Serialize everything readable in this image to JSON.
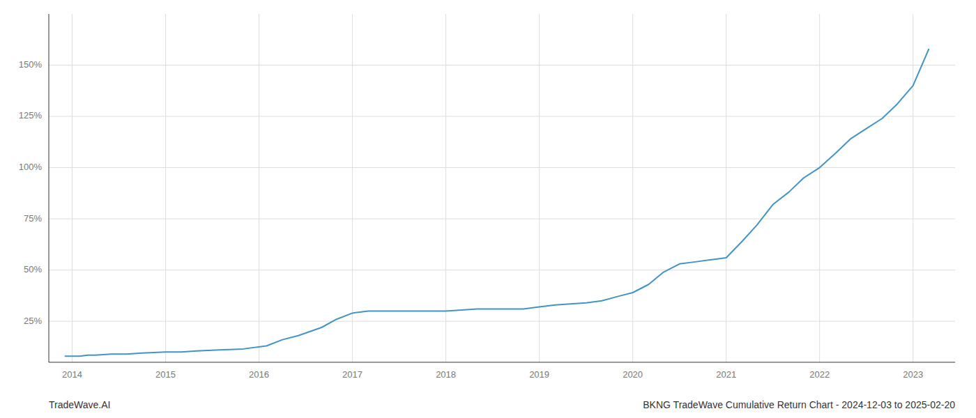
{
  "chart_data": {
    "type": "line",
    "title": "BKNG TradeWave Cumulative Return Chart - 2024-12-03 to 2025-02-20",
    "annotations": [
      "TradeWave.AI"
    ],
    "x": [
      2013.92,
      2014.0,
      2014.08,
      2014.17,
      2014.25,
      2014.42,
      2014.58,
      2014.75,
      2015.0,
      2015.17,
      2015.33,
      2015.58,
      2015.83,
      2016.08,
      2016.25,
      2016.42,
      2016.67,
      2016.83,
      2017.0,
      2017.17,
      2017.33,
      2017.5,
      2017.67,
      2017.83,
      2018.0,
      2018.17,
      2018.33,
      2018.5,
      2018.67,
      2018.83,
      2019.0,
      2019.17,
      2019.33,
      2019.5,
      2019.67,
      2019.83,
      2020.0,
      2020.17,
      2020.33,
      2020.5,
      2020.67,
      2020.83,
      2021.0,
      2021.17,
      2021.33,
      2021.5,
      2021.67,
      2021.83,
      2022.0,
      2022.17,
      2022.33,
      2022.5,
      2022.67,
      2022.83,
      2023.0,
      2023.17
    ],
    "values": [
      8,
      8,
      8,
      8.5,
      8.5,
      9,
      9,
      9.5,
      10,
      10,
      10.5,
      11,
      11.5,
      13,
      16,
      18,
      22,
      26,
      29,
      30,
      30,
      30,
      30,
      30,
      30,
      30.5,
      31,
      31,
      31,
      31,
      32,
      33,
      33.5,
      34,
      35,
      37,
      39,
      43,
      49,
      53,
      54,
      55,
      56,
      64,
      72,
      82,
      88,
      95,
      100,
      107,
      114,
      119,
      124,
      131,
      140,
      158
    ],
    "color": "#4393c3",
    "xlim": [
      2013.75,
      2023.45
    ],
    "xticks": [
      2014,
      2015,
      2016,
      2017,
      2018,
      2019,
      2020,
      2021,
      2022,
      2023
    ],
    "ylim": [
      5,
      175
    ],
    "yticks": [
      {
        "value": 25,
        "label": "25%"
      },
      {
        "value": 50,
        "label": "50%"
      },
      {
        "value": 75,
        "label": "75%"
      },
      {
        "value": 100,
        "label": "100%"
      },
      {
        "value": 125,
        "label": "125%"
      },
      {
        "value": 150,
        "label": "150%"
      }
    ],
    "grid": true
  }
}
